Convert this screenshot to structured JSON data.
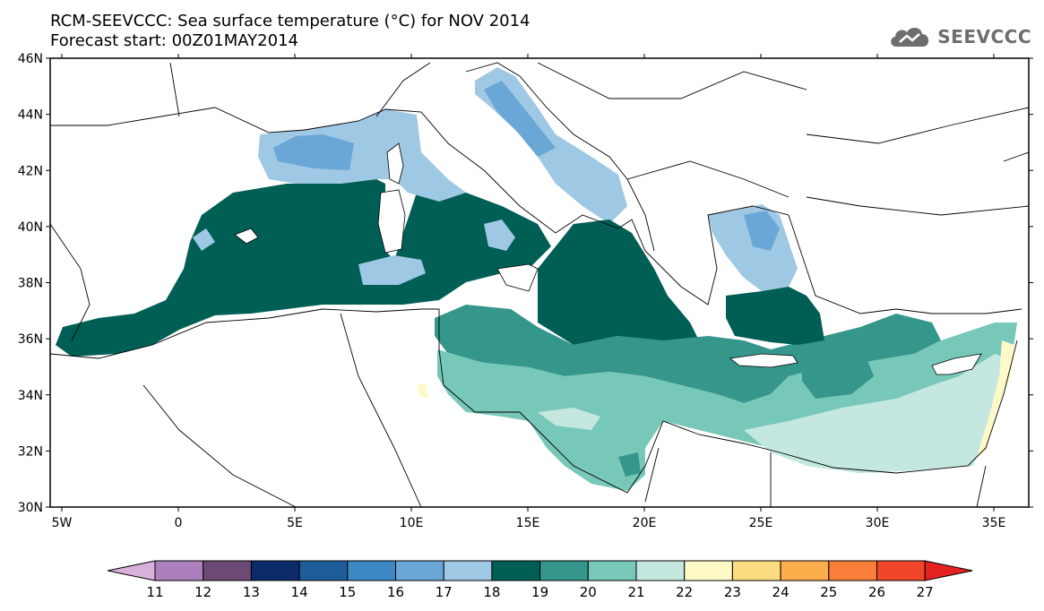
{
  "title": {
    "line1": "RCM-SEEVCCC: Sea surface temperature (°C) for NOV 2014",
    "line2": "Forecast start: 00Z01MAY2014"
  },
  "logo": {
    "text": "SEEVCCC",
    "icon": "cloud-icon"
  },
  "map": {
    "variable": "Sea surface temperature",
    "unit": "°C",
    "lon_range": [
      -5.5,
      36.5
    ],
    "lat_range": [
      30,
      46
    ],
    "lon_ticks": [
      {
        "value": -5,
        "label": "5W"
      },
      {
        "value": 0,
        "label": "0"
      },
      {
        "value": 5,
        "label": "5E"
      },
      {
        "value": 10,
        "label": "10E"
      },
      {
        "value": 15,
        "label": "15E"
      },
      {
        "value": 20,
        "label": "20E"
      },
      {
        "value": 25,
        "label": "25E"
      },
      {
        "value": 30,
        "label": "30E"
      },
      {
        "value": 35,
        "label": "35E"
      }
    ],
    "lat_ticks": [
      {
        "value": 30,
        "label": "30N"
      },
      {
        "value": 32,
        "label": "32N"
      },
      {
        "value": 34,
        "label": "34N"
      },
      {
        "value": 36,
        "label": "36N"
      },
      {
        "value": 38,
        "label": "38N"
      },
      {
        "value": 40,
        "label": "40N"
      },
      {
        "value": 42,
        "label": "42N"
      },
      {
        "value": 44,
        "label": "44N"
      },
      {
        "value": 46,
        "label": "46N"
      }
    ]
  },
  "colorbar": {
    "labels": [
      "11",
      "12",
      "13",
      "14",
      "15",
      "16",
      "17",
      "18",
      "19",
      "20",
      "21",
      "22",
      "23",
      "24",
      "25",
      "26",
      "27"
    ],
    "under_color": "#d8b0dc",
    "over_color": "#e42222",
    "colors": [
      "#ac80bc",
      "#6d4a74",
      "#0d2b6b",
      "#1e5d9a",
      "#3d87c2",
      "#6aa6d6",
      "#9ec8e4",
      "#005f55",
      "#35968c",
      "#78c8ba",
      "#c4e8e0",
      "#fdfac8",
      "#fcdc80",
      "#fcae4c",
      "#f87e3a",
      "#f0462a"
    ]
  }
}
